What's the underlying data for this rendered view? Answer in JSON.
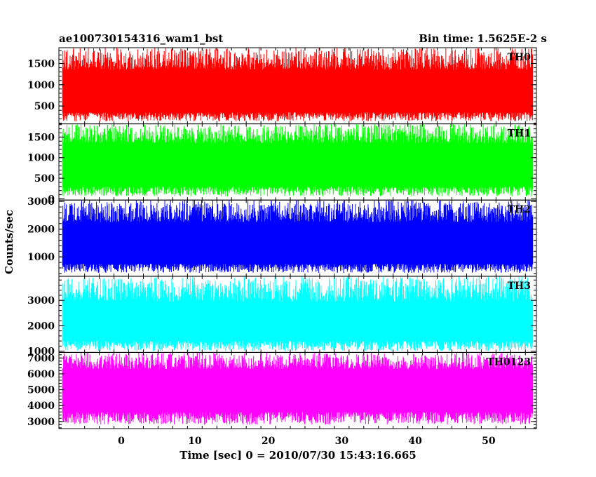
{
  "chart_data": {
    "type": "line",
    "title_left": "ae100730154316_wam1_bst",
    "title_right": "Bin time: 1.5625E-2 s",
    "xlabel": "Time [sec] 0 = 2010/07/30 15:43:16.665",
    "ylabel": "Counts/sec",
    "xlim": [
      -8.5,
      56.5
    ],
    "x_data_range": [
      -8.0,
      56.0
    ],
    "xticks": [
      0,
      10,
      20,
      30,
      40,
      50
    ],
    "grid": false,
    "panels": [
      {
        "name": "TH0",
        "color": "#ff0000",
        "ylim": [
          80,
          1870
        ],
        "yticks": [
          500,
          1000,
          1500
        ],
        "mean": 820,
        "typical_low": 350,
        "typical_high": 1350,
        "min": 140,
        "max": 1870
      },
      {
        "name": "TH1",
        "color": "#00ff00",
        "ylim": [
          -30,
          1820
        ],
        "yticks": [
          0,
          500,
          1000,
          1500
        ],
        "mean": 800,
        "typical_low": 300,
        "typical_high": 1350,
        "min": 60,
        "max": 1820
      },
      {
        "name": "TH2",
        "color": "#0000ff",
        "ylim": [
          300,
          3050
        ],
        "yticks": [
          1000,
          2000,
          3000
        ],
        "mean": 1420,
        "typical_low": 750,
        "typical_high": 2250,
        "min": 420,
        "max": 3050
      },
      {
        "name": "TH3",
        "color": "#00ffff",
        "ylim": [
          950,
          3950
        ],
        "yticks": [
          1000,
          2000,
          3000
        ],
        "mean": 2050,
        "typical_low": 1400,
        "typical_high": 2950,
        "min": 1000,
        "max": 3950
      },
      {
        "name": "TH0123",
        "color": "#ff00ff",
        "ylim": [
          2550,
          7350
        ],
        "yticks": [
          3000,
          4000,
          5000,
          6000,
          7000
        ],
        "mean": 5000,
        "typical_low": 3600,
        "typical_high": 6300,
        "min": 2800,
        "max": 7350
      }
    ]
  }
}
